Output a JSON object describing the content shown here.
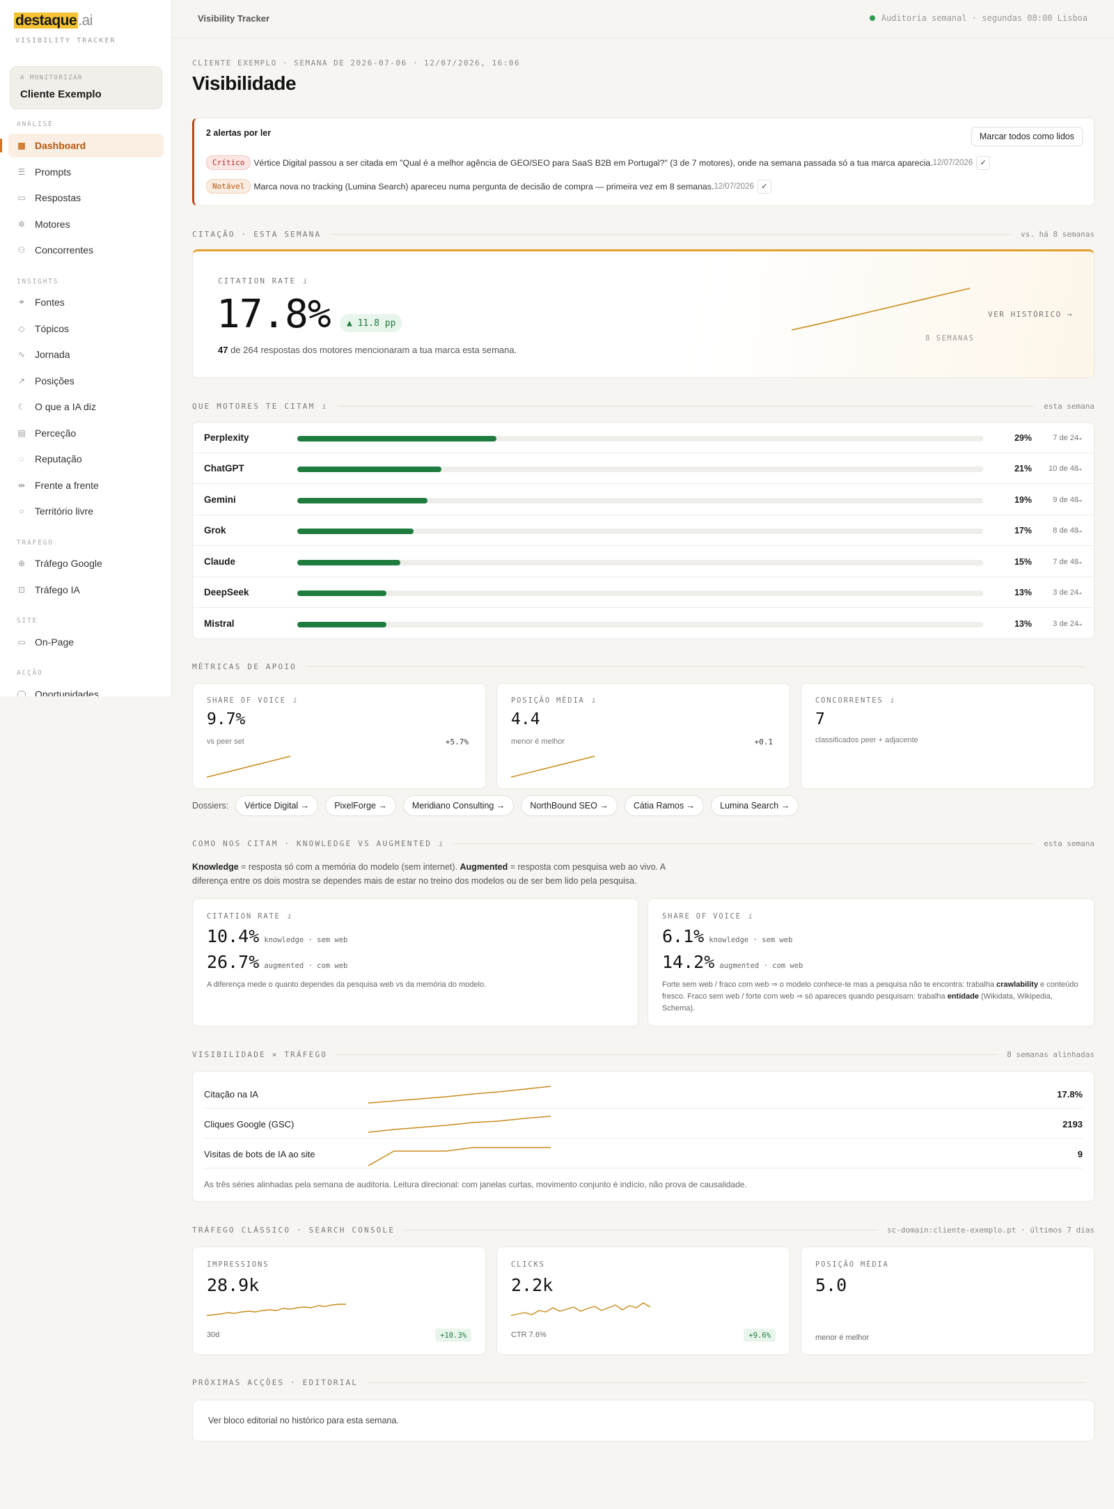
{
  "brand": {
    "name": "destaque",
    "suffix": ".ai",
    "tagline": "VISIBILITY TRACKER"
  },
  "client": {
    "label": "A MONITORIZAR",
    "name": "Cliente Exemplo"
  },
  "nav": {
    "sections": [
      {
        "label": "ANÁLISE",
        "items": [
          "Dashboard",
          "Prompts",
          "Respostas",
          "Motores",
          "Concorrentes"
        ]
      },
      {
        "label": "INSIGHTS",
        "items": [
          "Fontes",
          "Tópicos",
          "Jornada",
          "Posições",
          "O que a IA diz",
          "Perceção",
          "Reputação",
          "Frente a frente",
          "Território livre"
        ]
      },
      {
        "label": "TRÁFEGO",
        "items": [
          "Tráfego Google",
          "Tráfego IA"
        ]
      },
      {
        "label": "SITE",
        "items": [
          "On-Page"
        ]
      },
      {
        "label": "ACÇÃO",
        "items": [
          "Oportunidades"
        ]
      }
    ]
  },
  "topbar": {
    "title": "Visibility Tracker",
    "status": "Auditoria semanal · segundas 08:00 Lisboa"
  },
  "header": {
    "crumb": "CLIENTE EXEMPLO · SEMANA DE 2026-07-06 · 12/07/2026, 16:06",
    "title": "Visibilidade"
  },
  "alerts": {
    "title": "2 alertas por ler",
    "mark_all": "Marcar todos como lidos",
    "items": [
      {
        "badge": "Crítico",
        "text": "Vértice Digital passou a ser citada em \"Qual é a melhor agência de GEO/SEO para SaaS B2B em Portugal?\" (3 de 7 motores), onde na semana passada só a tua marca aparecia.",
        "date": "12/07/2026"
      },
      {
        "badge": "Notável",
        "text": "Marca nova no tracking (Lumina Search) apareceu numa pergunta de decisão de compra — primeira vez em 8 semanas.",
        "date": "12/07/2026"
      }
    ]
  },
  "citation": {
    "section": "CITAÇÃO · ESTA SEMANA",
    "section_right": "vs. há 8 semanas",
    "label": "CITATION RATE",
    "value": "17.8%",
    "delta": "▲ 11.8 pp",
    "desc_count": "47",
    "desc_rest": " de 264 respostas dos motores mencionaram a tua marca esta semana.",
    "weeks": "8 SEMANAS",
    "history": "VER HISTÓRICO →",
    "trend": [
      6.0,
      7.6,
      9.3,
      11.0,
      12.7,
      14.4,
      16.1,
      17.8
    ]
  },
  "engines": {
    "section": "QUE MOTORES TE CITAM",
    "section_right": "esta semana",
    "rows": [
      {
        "name": "Perplexity",
        "pct": "29%",
        "share": 0.29,
        "count": "7 de 24"
      },
      {
        "name": "ChatGPT",
        "pct": "21%",
        "share": 0.21,
        "count": "10 de 48"
      },
      {
        "name": "Gemini",
        "pct": "19%",
        "share": 0.19,
        "count": "9 de 48"
      },
      {
        "name": "Grok",
        "pct": "17%",
        "share": 0.17,
        "count": "8 de 48"
      },
      {
        "name": "Claude",
        "pct": "15%",
        "share": 0.15,
        "count": "7 de 48"
      },
      {
        "name": "DeepSeek",
        "pct": "13%",
        "share": 0.13,
        "count": "3 de 24"
      },
      {
        "name": "Mistral",
        "pct": "13%",
        "share": 0.13,
        "count": "3 de 24"
      }
    ]
  },
  "support": {
    "section": "MÉTRICAS DE APOIO",
    "metrics": [
      {
        "label": "SHARE OF VOICE",
        "value": "9.7%",
        "sub": "vs peer set",
        "change": "+5.7%"
      },
      {
        "label": "POSIÇÃO MÉDIA",
        "value": "4.4",
        "sub": "menor é melhor",
        "change": "+0.1"
      },
      {
        "label": "CONCORRENTES",
        "value": "7",
        "sub": "classificados peer + adjacente",
        "change": ""
      }
    ],
    "dossiers_label": "Dossiers:",
    "dossiers": [
      "Vértice Digital →",
      "PixelForge →",
      "Meridiano Consulting →",
      "NorthBound SEO →",
      "Cátia Ramos →",
      "Lumina Search →"
    ]
  },
  "knowledge": {
    "section": "COMO NOS CITAM · KNOWLEDGE VS AUGMENTED",
    "section_right": "esta semana",
    "explain_k": "Knowledge",
    "explain_1": " = resposta só com a memória do modelo (sem internet). ",
    "explain_a": "Augmented",
    "explain_2": " = resposta com pesquisa web ao vivo. A diferença entre os dois mostra se dependes mais de estar no treino dos modelos ou de ser bem lido pela pesquisa.",
    "cards": [
      {
        "label": "CITATION RATE",
        "k_value": "10.4%",
        "k_tag": "knowledge · sem web",
        "a_value": "26.7%",
        "a_tag": "augmented · com web",
        "note": "A diferença mede o quanto dependes da pesquisa web vs da memória do modelo."
      },
      {
        "label": "SHARE OF VOICE",
        "k_value": "6.1%",
        "k_tag": "knowledge · sem web",
        "a_value": "14.2%",
        "a_tag": "augmented · com web",
        "note_1": "Forte sem web / fraco com web ⇒ o modelo conhece-te mas a pesquisa não te encontra: trabalha ",
        "note_b1": "crawlability",
        "note_2": " e conteúdo fresco. Fraco sem web / forte com web ⇒ só apareces quando pesquisam: trabalha ",
        "note_b2": "entidade",
        "note_3": " (Wikidata, Wikipedia, Schema)."
      }
    ]
  },
  "traffic": {
    "section": "VISIBILIDADE × TRÁFEGO",
    "section_right": "8 semanas alinhadas",
    "rows": [
      {
        "name": "Citação na IA",
        "value": "17.8%"
      },
      {
        "name": "Cliques Google (GSC)",
        "value": "2193"
      },
      {
        "name": "Visitas de bots de IA ao site",
        "value": "9"
      }
    ],
    "foot": "As três séries alinhadas pela semana de auditoria. Leitura direcional: com janelas curtas, movimento conjunto é indício, não prova de causalidade."
  },
  "gsc": {
    "section": "TRÁFEGO CLÁSSICO · SEARCH CONSOLE",
    "section_right": "sc-domain:cliente-exemplo.pt · últimos 7 dias",
    "cards": [
      {
        "label": "IMPRESSIONS",
        "value": "28.9k",
        "sub": "30d",
        "badge": "+10.3%"
      },
      {
        "label": "CLICKS",
        "value": "2.2k",
        "sub": "CTR 7.6%",
        "badge": "+9.6%"
      },
      {
        "label": "POSIÇÃO MÉDIA",
        "value": "5.0",
        "sub": "menor é melhor",
        "badge": ""
      }
    ]
  },
  "editorial": {
    "section": "PRÓXIMAS ACÇÕES · EDITORIAL",
    "text": "Ver bloco editorial no histórico para esta semana."
  },
  "colors": {
    "accent": "#d07320",
    "spark": "#c98a1a",
    "bar": "#1e7d3e",
    "critical": "#b0302a"
  }
}
